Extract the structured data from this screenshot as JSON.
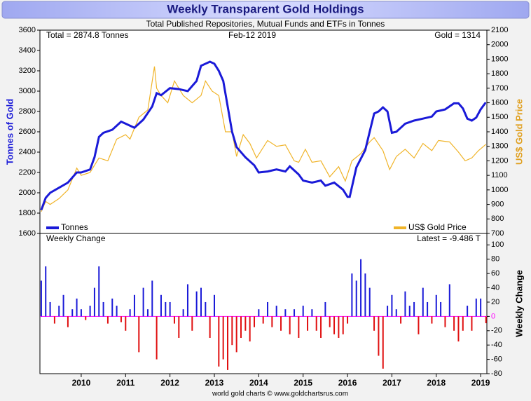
{
  "chart_data": [
    {
      "type": "line",
      "title": "Weekly Transparent Gold Holdings",
      "subtitle": "Total Published Repositories, Mutual Funds and ETFs in Tonnes",
      "annotations": [
        "Total = 2874.8 Tonnes",
        "Feb-12  2019",
        "Gold = 1314"
      ],
      "ylabel": "Tonnes of Gold",
      "y2label": "US$ Gold Price",
      "xlim": [
        2009.07,
        2019.14
      ],
      "xticks": [
        2010,
        2011,
        2012,
        2013,
        2014,
        2015,
        2016,
        2017,
        2018,
        2019
      ],
      "ylim": [
        1600,
        3600
      ],
      "yticks": [
        1600,
        1800,
        2000,
        2200,
        2400,
        2600,
        2800,
        3000,
        3200,
        3400,
        3600
      ],
      "y2lim": [
        700,
        2100
      ],
      "y2ticks": [
        700,
        800,
        900,
        1000,
        1100,
        1200,
        1300,
        1400,
        1500,
        1600,
        1700,
        1800,
        1900,
        2000,
        2100
      ],
      "legend": "bottom",
      "series": [
        {
          "name": "Tonnes",
          "color": "#1a1ad8",
          "x": [
            2009.1,
            2009.2,
            2009.3,
            2009.5,
            2009.7,
            2009.9,
            2010.0,
            2010.2,
            2010.3,
            2010.4,
            2010.5,
            2010.7,
            2010.9,
            2011.0,
            2011.2,
            2011.4,
            2011.6,
            2011.7,
            2011.8,
            2012.0,
            2012.2,
            2012.4,
            2012.6,
            2012.7,
            2012.9,
            2013.0,
            2013.1,
            2013.2,
            2013.3,
            2013.4,
            2013.5,
            2013.7,
            2013.9,
            2014.0,
            2014.2,
            2014.4,
            2014.6,
            2014.7,
            2014.9,
            2015.0,
            2015.2,
            2015.4,
            2015.5,
            2015.7,
            2015.9,
            2016.0,
            2016.05,
            2016.2,
            2016.4,
            2016.5,
            2016.6,
            2016.7,
            2016.8,
            2016.9,
            2017.0,
            2017.1,
            2017.3,
            2017.5,
            2017.7,
            2017.9,
            2018.0,
            2018.2,
            2018.4,
            2018.5,
            2018.6,
            2018.7,
            2018.8,
            2018.9,
            2019.0,
            2019.1,
            2019.12
          ],
          "values": [
            1830,
            1950,
            2000,
            2050,
            2100,
            2200,
            2200,
            2230,
            2350,
            2550,
            2590,
            2620,
            2700,
            2680,
            2640,
            2720,
            2850,
            2980,
            2960,
            3030,
            3020,
            3000,
            3100,
            3250,
            3290,
            3270,
            3200,
            3100,
            2850,
            2600,
            2450,
            2350,
            2270,
            2200,
            2210,
            2230,
            2210,
            2260,
            2180,
            2120,
            2100,
            2120,
            2070,
            2100,
            2030,
            1960,
            1960,
            2250,
            2420,
            2600,
            2780,
            2800,
            2840,
            2800,
            2590,
            2600,
            2680,
            2710,
            2730,
            2750,
            2800,
            2820,
            2880,
            2880,
            2830,
            2730,
            2710,
            2740,
            2820,
            2880,
            2875
          ]
        },
        {
          "name": "US$ Gold Price",
          "color": "#f0b429",
          "axis": "y2",
          "x": [
            2009.1,
            2009.2,
            2009.3,
            2009.5,
            2009.7,
            2009.9,
            2010.0,
            2010.2,
            2010.4,
            2010.6,
            2010.8,
            2011.0,
            2011.1,
            2011.3,
            2011.5,
            2011.65,
            2011.7,
            2011.8,
            2011.95,
            2012.1,
            2012.3,
            2012.5,
            2012.7,
            2012.8,
            2012.95,
            2013.1,
            2013.25,
            2013.4,
            2013.5,
            2013.65,
            2013.8,
            2013.95,
            2014.2,
            2014.4,
            2014.6,
            2014.8,
            2014.9,
            2015.05,
            2015.2,
            2015.4,
            2015.6,
            2015.8,
            2015.95,
            2016.1,
            2016.3,
            2016.5,
            2016.6,
            2016.8,
            2016.95,
            2017.1,
            2017.3,
            2017.5,
            2017.7,
            2017.9,
            2018.05,
            2018.3,
            2018.5,
            2018.65,
            2018.8,
            2018.95,
            2019.12
          ],
          "values": [
            850,
            920,
            900,
            940,
            1000,
            1150,
            1100,
            1120,
            1220,
            1200,
            1350,
            1380,
            1350,
            1500,
            1550,
            1850,
            1700,
            1650,
            1600,
            1750,
            1650,
            1600,
            1650,
            1750,
            1680,
            1650,
            1400,
            1400,
            1230,
            1380,
            1320,
            1220,
            1340,
            1300,
            1310,
            1200,
            1190,
            1280,
            1190,
            1200,
            1090,
            1160,
            1060,
            1200,
            1250,
            1330,
            1360,
            1270,
            1140,
            1230,
            1280,
            1220,
            1320,
            1270,
            1340,
            1330,
            1260,
            1200,
            1220,
            1270,
            1314
          ]
        }
      ]
    },
    {
      "type": "bar",
      "title": "Weekly Change",
      "annotation": "Latest = -9.486 T",
      "ylabel": "Weekly Change",
      "xlim": [
        2009.07,
        2019.14
      ],
      "xticks": [
        2010,
        2011,
        2012,
        2013,
        2014,
        2015,
        2016,
        2017,
        2018,
        2019
      ],
      "ylim": [
        -80,
        116
      ],
      "yticks": [
        -80,
        -60,
        -40,
        -20,
        0,
        20,
        40,
        60,
        80,
        100
      ],
      "colors": {
        "positive": "#1a1ad8",
        "negative": "#e01010",
        "zero": "#ff00ff"
      },
      "x": [
        2009.1,
        2009.2,
        2009.3,
        2009.4,
        2009.5,
        2009.6,
        2009.7,
        2009.8,
        2009.9,
        2010.0,
        2010.1,
        2010.2,
        2010.3,
        2010.4,
        2010.5,
        2010.6,
        2010.7,
        2010.8,
        2010.9,
        2011.0,
        2011.1,
        2011.2,
        2011.3,
        2011.4,
        2011.5,
        2011.6,
        2011.7,
        2011.8,
        2011.9,
        2012.0,
        2012.1,
        2012.2,
        2012.3,
        2012.4,
        2012.5,
        2012.6,
        2012.7,
        2012.8,
        2012.9,
        2013.0,
        2013.1,
        2013.2,
        2013.3,
        2013.4,
        2013.5,
        2013.6,
        2013.7,
        2013.8,
        2013.9,
        2014.0,
        2014.1,
        2014.2,
        2014.3,
        2014.4,
        2014.5,
        2014.6,
        2014.7,
        2014.8,
        2014.9,
        2015.0,
        2015.1,
        2015.2,
        2015.3,
        2015.4,
        2015.5,
        2015.6,
        2015.7,
        2015.8,
        2015.9,
        2016.0,
        2016.1,
        2016.2,
        2016.3,
        2016.4,
        2016.5,
        2016.6,
        2016.7,
        2016.8,
        2016.9,
        2017.0,
        2017.1,
        2017.2,
        2017.3,
        2017.4,
        2017.5,
        2017.6,
        2017.7,
        2017.8,
        2017.9,
        2018.0,
        2018.1,
        2018.2,
        2018.3,
        2018.4,
        2018.5,
        2018.6,
        2018.7,
        2018.8,
        2018.9,
        2019.0,
        2019.12
      ],
      "values": [
        50,
        70,
        20,
        -10,
        15,
        30,
        -15,
        10,
        25,
        10,
        -5,
        15,
        40,
        70,
        20,
        -10,
        25,
        15,
        -8,
        -20,
        10,
        30,
        -50,
        40,
        10,
        50,
        -60,
        30,
        20,
        20,
        -10,
        -30,
        10,
        45,
        -20,
        35,
        40,
        20,
        -30,
        30,
        -70,
        -60,
        -75,
        -40,
        -50,
        -30,
        -20,
        -35,
        -15,
        10,
        -10,
        20,
        -15,
        15,
        -20,
        10,
        -25,
        10,
        -30,
        15,
        -20,
        10,
        -20,
        -30,
        20,
        -15,
        -25,
        -30,
        -25,
        -10,
        60,
        50,
        80,
        60,
        40,
        -20,
        -55,
        -73,
        15,
        30,
        10,
        -10,
        35,
        15,
        20,
        -25,
        40,
        20,
        -10,
        30,
        20,
        -15,
        45,
        -20,
        -35,
        -20,
        15,
        -20,
        25,
        25,
        -9.486
      ]
    }
  ],
  "footer": "world gold charts © www.goldchartsrus.com"
}
